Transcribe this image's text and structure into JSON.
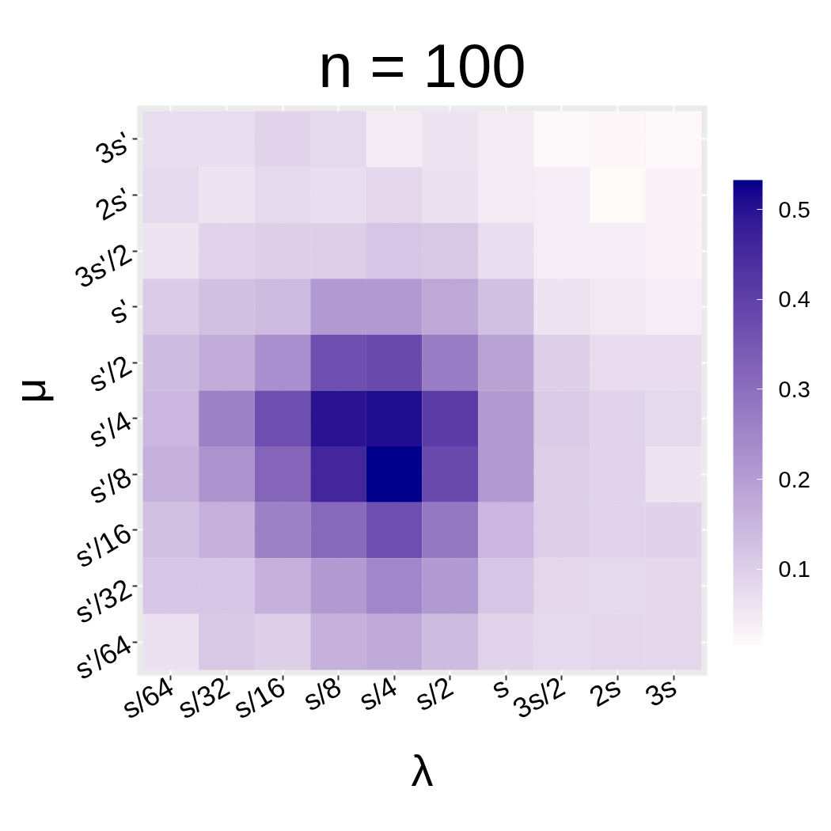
{
  "chart_data": {
    "type": "heatmap",
    "title": "n = 100",
    "xlabel": "λ",
    "ylabel": "μ",
    "categories": [
      "s/64",
      "s/32",
      "s/16",
      "s/8",
      "s/4",
      "s/2",
      "s",
      "3s/2",
      "2s",
      "3s"
    ],
    "y_categories": [
      "3s'",
      "2s'",
      "3s'/2",
      "s'",
      "s'/2",
      "s'/4",
      "s'/8",
      "s'/16",
      "s'/32",
      "s'/64"
    ],
    "cells": [
      [
        0.07,
        0.07,
        0.09,
        0.08,
        0.045,
        0.06,
        0.045,
        0.02,
        0.025,
        0.02
      ],
      [
        0.08,
        0.06,
        0.08,
        0.07,
        0.085,
        0.065,
        0.045,
        0.04,
        0.015,
        0.03
      ],
      [
        0.06,
        0.09,
        0.1,
        0.1,
        0.12,
        0.115,
        0.07,
        0.04,
        0.04,
        0.03
      ],
      [
        0.11,
        0.13,
        0.14,
        0.21,
        0.21,
        0.18,
        0.13,
        0.06,
        0.05,
        0.04
      ],
      [
        0.14,
        0.17,
        0.23,
        0.37,
        0.38,
        0.27,
        0.19,
        0.1,
        0.075,
        0.075
      ],
      [
        0.15,
        0.26,
        0.37,
        0.5,
        0.51,
        0.41,
        0.21,
        0.11,
        0.09,
        0.08
      ],
      [
        0.16,
        0.22,
        0.32,
        0.46,
        0.533,
        0.38,
        0.21,
        0.1,
        0.09,
        0.06
      ],
      [
        0.13,
        0.16,
        0.26,
        0.31,
        0.37,
        0.28,
        0.15,
        0.1,
        0.09,
        0.095
      ],
      [
        0.12,
        0.12,
        0.16,
        0.21,
        0.25,
        0.21,
        0.12,
        0.085,
        0.08,
        0.085
      ],
      [
        0.065,
        0.115,
        0.1,
        0.16,
        0.175,
        0.14,
        0.09,
        0.08,
        0.085,
        0.085
      ]
    ],
    "clim": [
      0.015,
      0.533
    ],
    "cticks": [
      0.1,
      0.2,
      0.3,
      0.4,
      0.5
    ],
    "grid": true
  }
}
